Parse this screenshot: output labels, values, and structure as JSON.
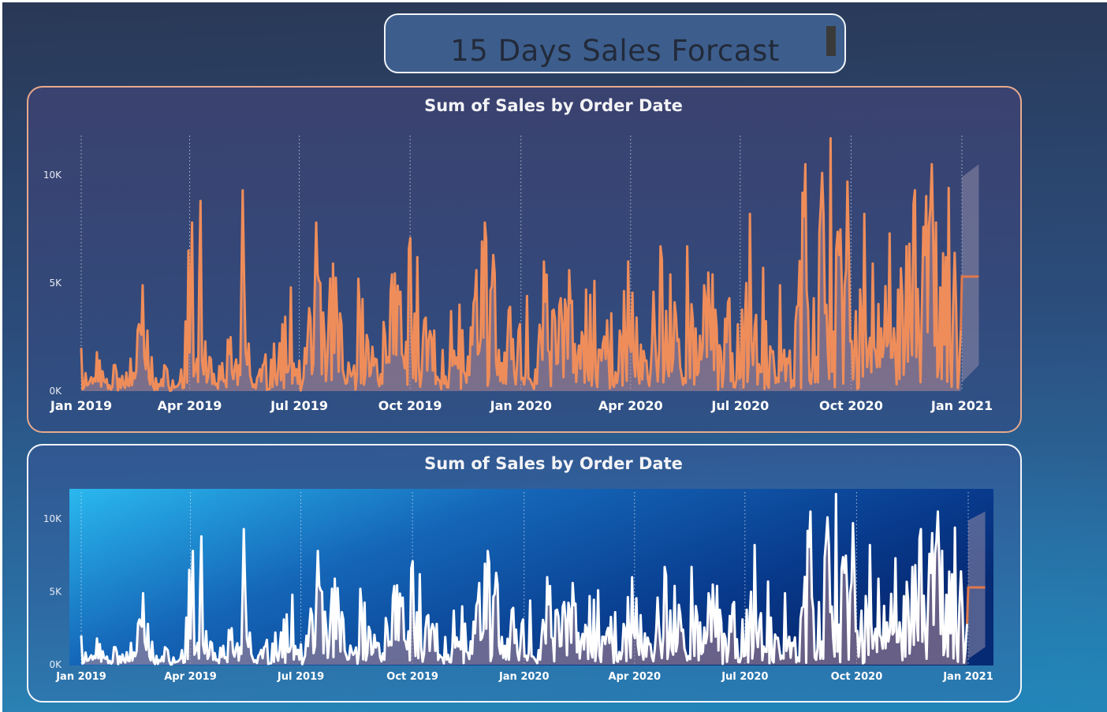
{
  "header": {
    "title": "15 Days Sales Forcast"
  },
  "colors": {
    "line_top": "#ef8d5a",
    "line_bottom": "#ffffff",
    "forecast_line": "#e0794b",
    "forecast_band": "#8f8aa8",
    "area_fill": "#b88a93"
  },
  "chart_data": [
    {
      "type": "line",
      "title": "Sum of Sales by Order Date",
      "xlabel": "",
      "ylabel": "",
      "x_ticks": [
        "Jan 2019",
        "Apr 2019",
        "Jul 2019",
        "Oct 2019",
        "Jan 2020",
        "Apr 2020",
        "Jul 2020",
        "Oct 2020",
        "Jan 2021"
      ],
      "y_ticks": [
        "0K",
        "5K",
        "10K"
      ],
      "ylim": [
        0,
        12000
      ],
      "xlim": [
        "2019-01-01",
        "2021-01-15"
      ],
      "grid": "vertical dotted at tick dates",
      "series": [
        {
          "style": "daily sales line with shaded area",
          "points": [
            [
              "2019-01-01",
              2000
            ],
            [
              "2019-01-07",
              300
            ],
            [
              "2019-01-14",
              1800
            ],
            [
              "2019-01-21",
              400
            ],
            [
              "2019-01-28",
              1200
            ],
            [
              "2019-02-04",
              700
            ],
            [
              "2019-02-11",
              1500
            ],
            [
              "2019-02-18",
              3100
            ],
            [
              "2019-02-21",
              4900
            ],
            [
              "2019-02-25",
              2800
            ],
            [
              "2019-03-04",
              600
            ],
            [
              "2019-03-11",
              1200
            ],
            [
              "2019-03-18",
              500
            ],
            [
              "2019-03-25",
              1000
            ],
            [
              "2019-03-31",
              6500
            ],
            [
              "2019-04-03",
              7800
            ],
            [
              "2019-04-07",
              1500
            ],
            [
              "2019-04-10",
              8800
            ],
            [
              "2019-04-14",
              2300
            ],
            [
              "2019-04-21",
              800
            ],
            [
              "2019-04-28",
              1300
            ],
            [
              "2019-05-05",
              2500
            ],
            [
              "2019-05-12",
              1200
            ],
            [
              "2019-05-15",
              9300
            ],
            [
              "2019-05-20",
              2200
            ],
            [
              "2019-05-27",
              600
            ],
            [
              "2019-06-03",
              1700
            ],
            [
              "2019-06-10",
              2200
            ],
            [
              "2019-06-17",
              3100
            ],
            [
              "2019-06-24",
              4800
            ],
            [
              "2019-07-01",
              1400
            ],
            [
              "2019-07-08",
              2600
            ],
            [
              "2019-07-15",
              7800
            ],
            [
              "2019-07-22",
              2400
            ],
            [
              "2019-07-29",
              5900
            ],
            [
              "2019-08-05",
              3100
            ],
            [
              "2019-08-12",
              900
            ],
            [
              "2019-08-19",
              5200
            ],
            [
              "2019-08-26",
              2600
            ],
            [
              "2019-09-02",
              1500
            ],
            [
              "2019-09-09",
              3200
            ],
            [
              "2019-09-16",
              5400
            ],
            [
              "2019-09-23",
              4600
            ],
            [
              "2019-09-30",
              6600
            ],
            [
              "2019-10-07",
              6200
            ],
            [
              "2019-10-14",
              3400
            ],
            [
              "2019-10-21",
              2800
            ],
            [
              "2019-10-28",
              1900
            ],
            [
              "2019-11-04",
              3700
            ],
            [
              "2019-11-11",
              4000
            ],
            [
              "2019-11-18",
              1600
            ],
            [
              "2019-11-25",
              5600
            ],
            [
              "2019-12-02",
              7800
            ],
            [
              "2019-12-09",
              6300
            ],
            [
              "2019-12-16",
              1300
            ],
            [
              "2019-12-23",
              3900
            ],
            [
              "2019-12-30",
              2800
            ],
            [
              "2020-01-06",
              4400
            ],
            [
              "2020-01-13",
              1000
            ],
            [
              "2020-01-20",
              6000
            ],
            [
              "2020-01-27",
              3700
            ],
            [
              "2020-02-03",
              4300
            ],
            [
              "2020-02-10",
              5600
            ],
            [
              "2020-02-17",
              1600
            ],
            [
              "2020-02-24",
              4700
            ],
            [
              "2020-03-02",
              5100
            ],
            [
              "2020-03-09",
              2200
            ],
            [
              "2020-03-16",
              3600
            ],
            [
              "2020-03-23",
              2800
            ],
            [
              "2020-03-30",
              6000
            ],
            [
              "2020-04-06",
              3400
            ],
            [
              "2020-04-13",
              1400
            ],
            [
              "2020-04-20",
              4600
            ],
            [
              "2020-04-27",
              6100
            ],
            [
              "2020-05-04",
              5400
            ],
            [
              "2020-05-11",
              2400
            ],
            [
              "2020-05-18",
              6700
            ],
            [
              "2020-05-25",
              2900
            ],
            [
              "2020-06-01",
              4900
            ],
            [
              "2020-06-08",
              5400
            ],
            [
              "2020-06-15",
              1800
            ],
            [
              "2020-06-22",
              4300
            ],
            [
              "2020-06-29",
              3100
            ],
            [
              "2020-07-06",
              5000
            ],
            [
              "2020-07-09",
              8200
            ],
            [
              "2020-07-13",
              3000
            ],
            [
              "2020-07-20",
              5700
            ],
            [
              "2020-07-27",
              1800
            ],
            [
              "2020-08-03",
              4900
            ],
            [
              "2020-08-10",
              1300
            ],
            [
              "2020-08-17",
              3900
            ],
            [
              "2020-08-24",
              10500
            ],
            [
              "2020-08-31",
              4300
            ],
            [
              "2020-09-07",
              10100
            ],
            [
              "2020-09-14",
              11700
            ],
            [
              "2020-09-21",
              6300
            ],
            [
              "2020-09-28",
              9700
            ],
            [
              "2020-10-05",
              3700
            ],
            [
              "2020-10-12",
              8200
            ],
            [
              "2020-10-19",
              5900
            ],
            [
              "2020-10-26",
              2900
            ],
            [
              "2020-11-02",
              7300
            ],
            [
              "2020-11-09",
              4700
            ],
            [
              "2020-11-16",
              6700
            ],
            [
              "2020-11-23",
              9300
            ],
            [
              "2020-11-30",
              7600
            ],
            [
              "2020-12-07",
              10500
            ],
            [
              "2020-12-14",
              4800
            ],
            [
              "2020-12-21",
              9400
            ],
            [
              "2020-12-26",
              6400
            ],
            [
              "2020-12-31",
              2800
            ]
          ]
        },
        {
          "name": "forecast",
          "x": [
            "2021-01-01",
            "2021-01-15"
          ],
          "values": [
            5300,
            5300
          ],
          "upper": [
            9500,
            9500
          ],
          "lower": [
            1200,
            1200
          ]
        }
      ]
    },
    {
      "type": "line",
      "title": "Sum of Sales by Order Date",
      "xlabel": "",
      "ylabel": "",
      "x_ticks": [
        "Jan 2019",
        "Apr 2019",
        "Jul 2019",
        "Oct 2019",
        "Jan 2020",
        "Apr 2020",
        "Jul 2020",
        "Oct 2020",
        "Jan 2021"
      ],
      "y_ticks": [
        "0K",
        "5K",
        "10K"
      ],
      "ylim": [
        0,
        12000
      ],
      "xlim": [
        "2019-01-01",
        "2021-01-15"
      ],
      "grid": "vertical dotted at tick dates",
      "series": [
        {
          "style": "same data as above, white line",
          "same_as": 0
        },
        {
          "name": "forecast",
          "x": [
            "2021-01-01",
            "2021-01-15"
          ],
          "values": [
            5300,
            5300
          ],
          "upper": [
            9500,
            9500
          ],
          "lower": [
            1200,
            1200
          ]
        }
      ]
    }
  ]
}
